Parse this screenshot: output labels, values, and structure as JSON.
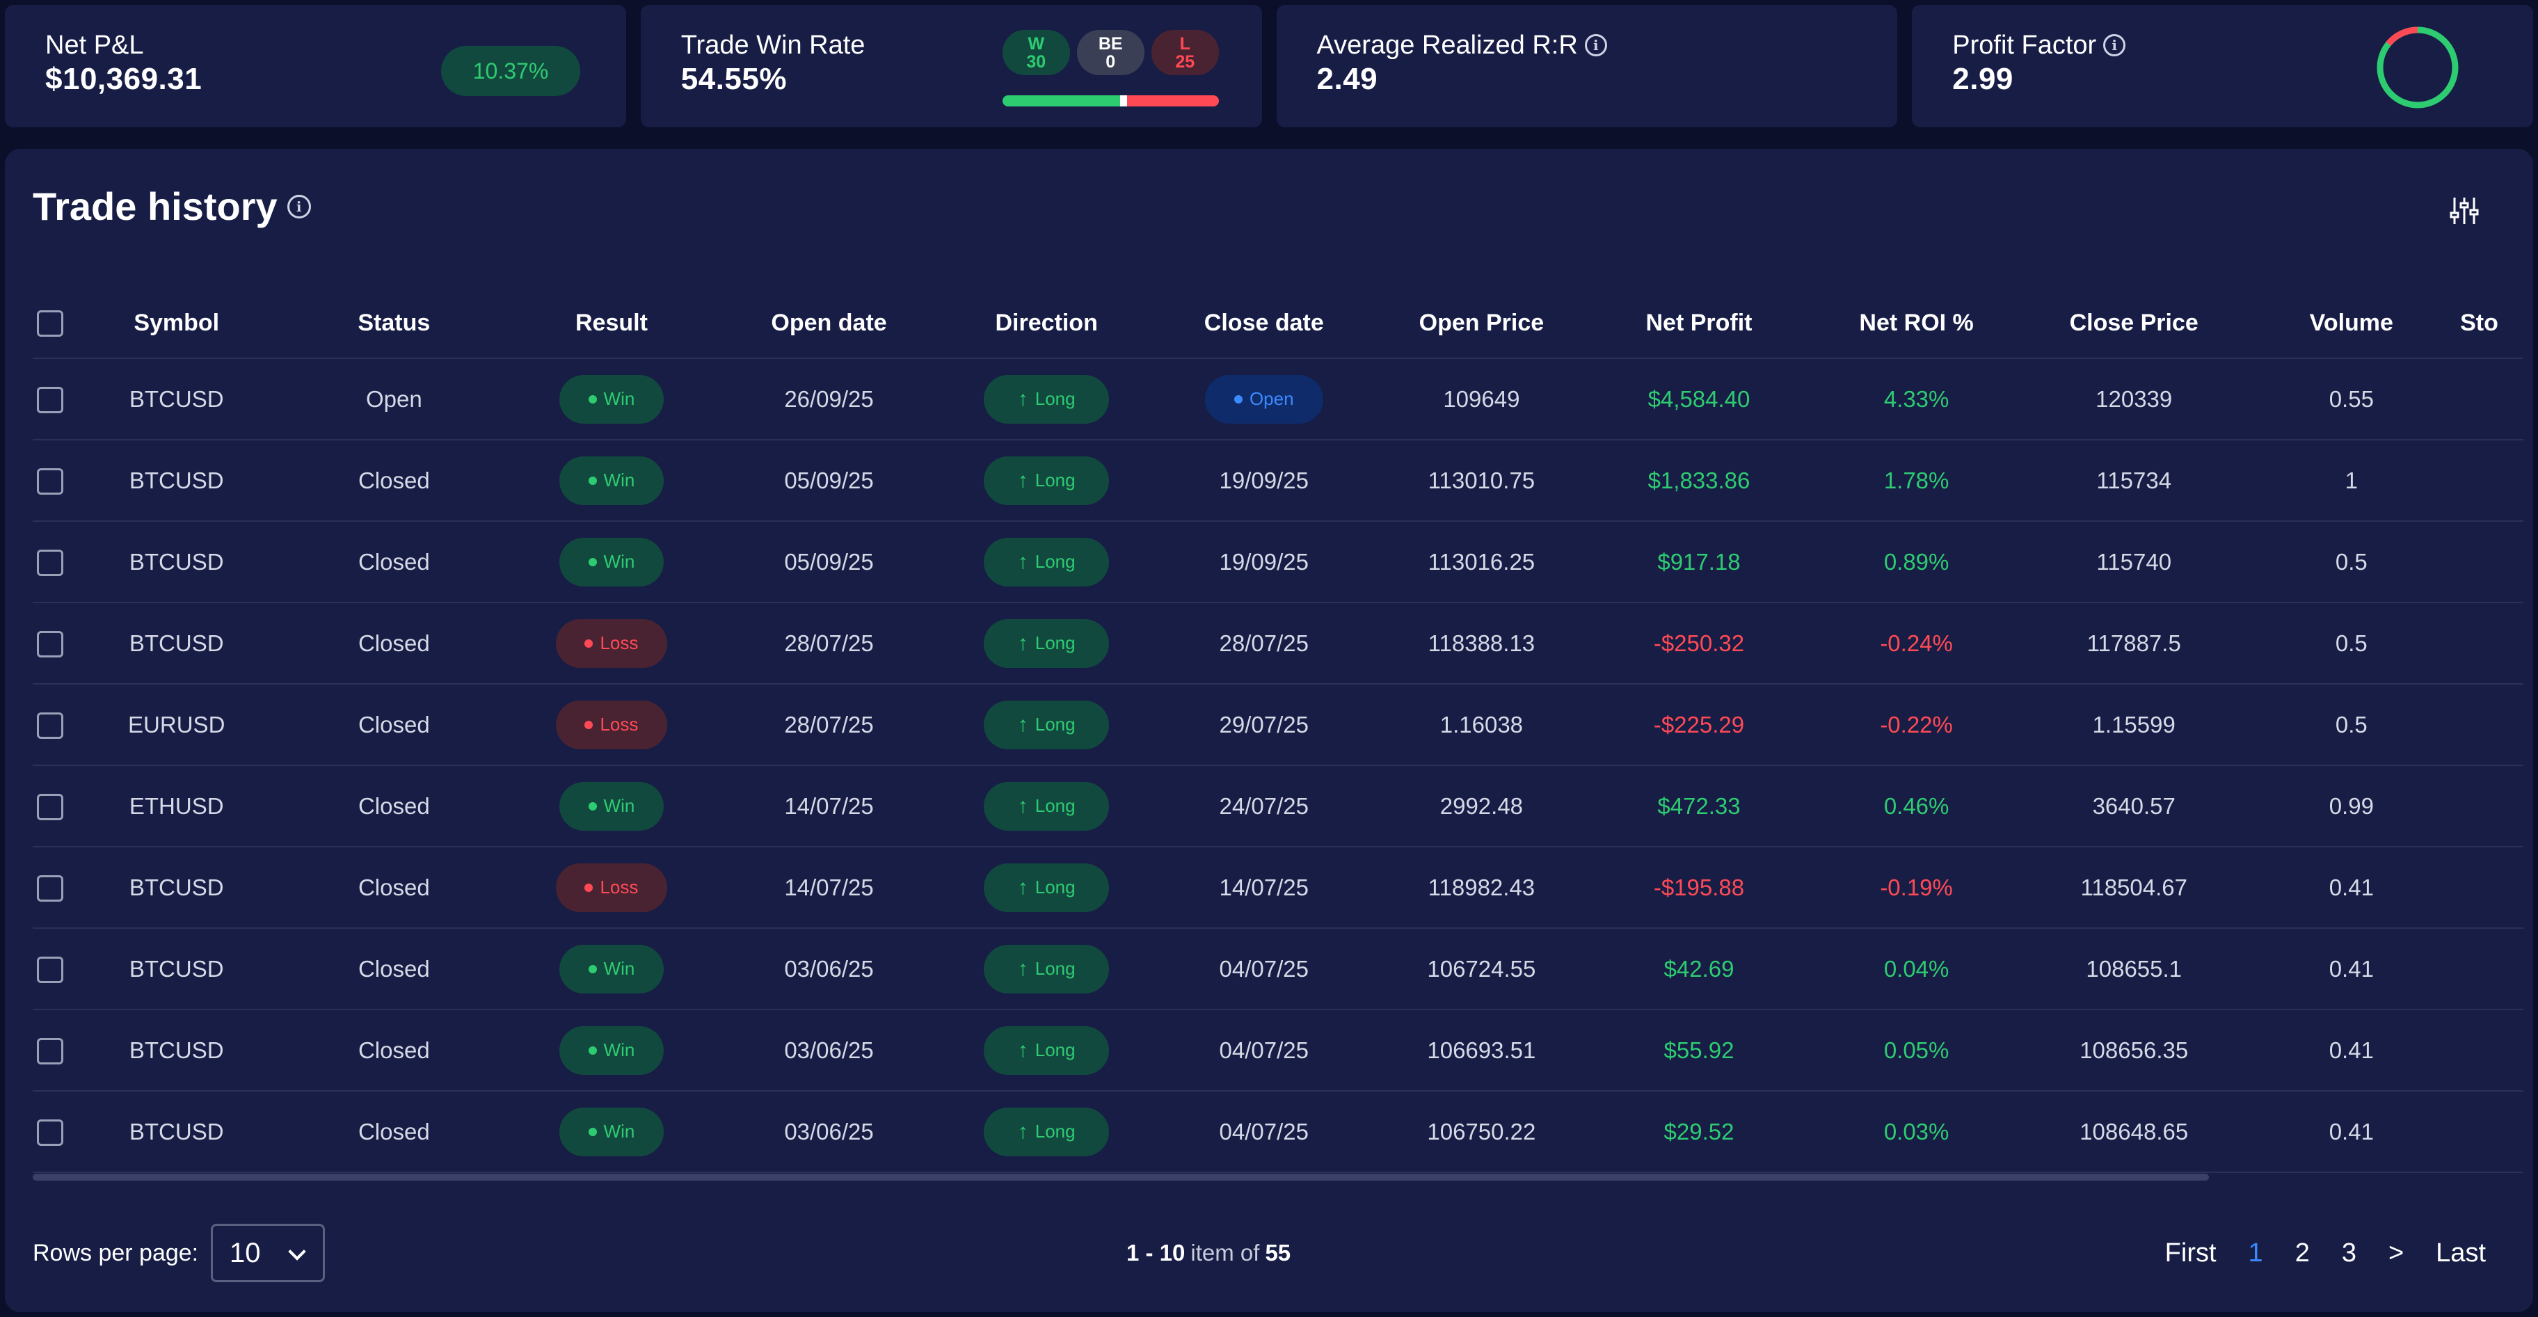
{
  "stats": {
    "net_pnl": {
      "title": "Net P&L",
      "value": "$10,369.31",
      "badge": "10.37%"
    },
    "win_rate": {
      "title": "Trade Win Rate",
      "value": "54.55%",
      "w_label": "W",
      "w_value": "30",
      "be_label": "BE",
      "be_value": "0",
      "l_label": "L",
      "l_value": "25",
      "win_fraction": 0.5455
    },
    "avg_rr": {
      "title": "Average Realized R:R",
      "value": "2.49"
    },
    "profit_factor": {
      "title": "Profit Factor",
      "value": "2.99",
      "ring_color": "#2ecc71",
      "ring_loss_color": "#ff4a55"
    }
  },
  "trade_history": {
    "title": "Trade history",
    "columns": [
      "Symbol",
      "Status",
      "Result",
      "Open date",
      "Direction",
      "Close date",
      "Open Price",
      "Net Profit",
      "Net ROI %",
      "Close Price",
      "Volume",
      "Sto"
    ],
    "rows": [
      {
        "symbol": "BTCUSD",
        "status": "Open",
        "result": "Win",
        "open_date": "26/09/25",
        "direction": "Long",
        "close_date": "Open",
        "open_price": "109649",
        "net_profit": "$4,584.40",
        "net_roi": "4.33%",
        "close_price": "120339",
        "volume": "0.55"
      },
      {
        "symbol": "BTCUSD",
        "status": "Closed",
        "result": "Win",
        "open_date": "05/09/25",
        "direction": "Long",
        "close_date": "19/09/25",
        "open_price": "113010.75",
        "net_profit": "$1,833.86",
        "net_roi": "1.78%",
        "close_price": "115734",
        "volume": "1"
      },
      {
        "symbol": "BTCUSD",
        "status": "Closed",
        "result": "Win",
        "open_date": "05/09/25",
        "direction": "Long",
        "close_date": "19/09/25",
        "open_price": "113016.25",
        "net_profit": "$917.18",
        "net_roi": "0.89%",
        "close_price": "115740",
        "volume": "0.5"
      },
      {
        "symbol": "BTCUSD",
        "status": "Closed",
        "result": "Loss",
        "open_date": "28/07/25",
        "direction": "Long",
        "close_date": "28/07/25",
        "open_price": "118388.13",
        "net_profit": "-$250.32",
        "net_roi": "-0.24%",
        "close_price": "117887.5",
        "volume": "0.5"
      },
      {
        "symbol": "EURUSD",
        "status": "Closed",
        "result": "Loss",
        "open_date": "28/07/25",
        "direction": "Long",
        "close_date": "29/07/25",
        "open_price": "1.16038",
        "net_profit": "-$225.29",
        "net_roi": "-0.22%",
        "close_price": "1.15599",
        "volume": "0.5"
      },
      {
        "symbol": "ETHUSD",
        "status": "Closed",
        "result": "Win",
        "open_date": "14/07/25",
        "direction": "Long",
        "close_date": "24/07/25",
        "open_price": "2992.48",
        "net_profit": "$472.33",
        "net_roi": "0.46%",
        "close_price": "3640.57",
        "volume": "0.99"
      },
      {
        "symbol": "BTCUSD",
        "status": "Closed",
        "result": "Loss",
        "open_date": "14/07/25",
        "direction": "Long",
        "close_date": "14/07/25",
        "open_price": "118982.43",
        "net_profit": "-$195.88",
        "net_roi": "-0.19%",
        "close_price": "118504.67",
        "volume": "0.41"
      },
      {
        "symbol": "BTCUSD",
        "status": "Closed",
        "result": "Win",
        "open_date": "03/06/25",
        "direction": "Long",
        "close_date": "04/07/25",
        "open_price": "106724.55",
        "net_profit": "$42.69",
        "net_roi": "0.04%",
        "close_price": "108655.1",
        "volume": "0.41"
      },
      {
        "symbol": "BTCUSD",
        "status": "Closed",
        "result": "Win",
        "open_date": "03/06/25",
        "direction": "Long",
        "close_date": "04/07/25",
        "open_price": "106693.51",
        "net_profit": "$55.92",
        "net_roi": "0.05%",
        "close_price": "108656.35",
        "volume": "0.41"
      },
      {
        "symbol": "BTCUSD",
        "status": "Closed",
        "result": "Win",
        "open_date": "03/06/25",
        "direction": "Long",
        "close_date": "04/07/25",
        "open_price": "106750.22",
        "net_profit": "$29.52",
        "net_roi": "0.03%",
        "close_price": "108648.65",
        "volume": "0.41"
      }
    ]
  },
  "footer": {
    "rows_per_page_label": "Rows per page:",
    "rows_per_page_value": "10",
    "range": "1 - 10",
    "item_of": "item of",
    "total": "55",
    "pager": {
      "first": "First",
      "pages": [
        "1",
        "2",
        "3"
      ],
      "next": ">",
      "last": "Last",
      "active_page": "1"
    }
  },
  "icons": {
    "info": "info-icon",
    "filter": "sliders-icon",
    "arrow": "arrow-up-icon",
    "chevron": "chevron-down-icon"
  }
}
